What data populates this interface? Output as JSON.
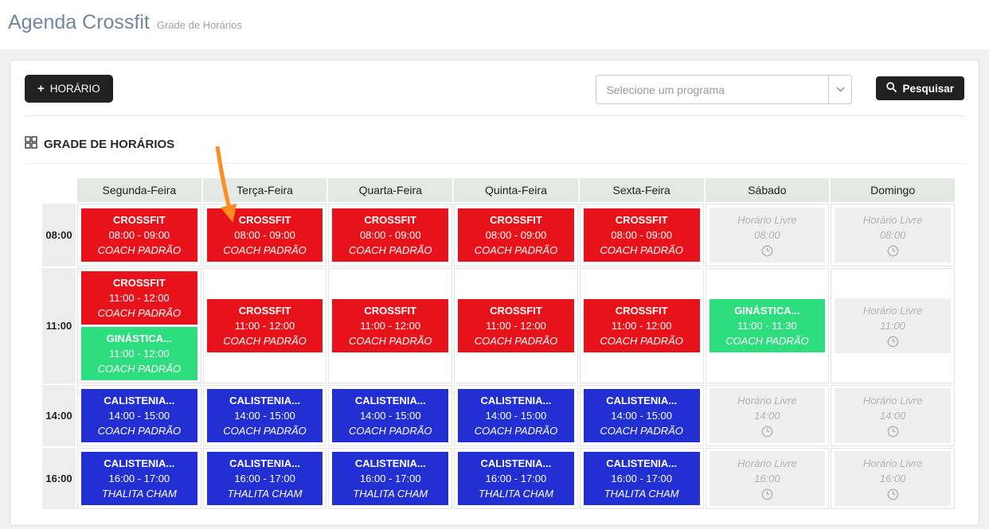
{
  "page": {
    "title": "Agenda Crossfit",
    "subtitle": "Grade de Horários"
  },
  "toolbar": {
    "add_button_label": "HORÁRIO",
    "add_button_plus": "+",
    "select_placeholder": "Selecione um programa",
    "search_button_label": "Pesquisar"
  },
  "section": {
    "title": "GRADE DE HORÁRIOS"
  },
  "colors": {
    "red": "#e8121a",
    "green": "#2edd7e",
    "blue": "#222fd3",
    "free_bg": "#efefef",
    "free_text": "#b3b3b3",
    "arrow_orange": "#ff8c1e",
    "button_dark": "#212121",
    "title_blue_gray": "#73879c"
  },
  "schedule": {
    "days": [
      "Segunda-Feira",
      "Terça-Feira",
      "Quarta-Feira",
      "Quinta-Feira",
      "Sexta-Feira",
      "Sábado",
      "Domingo"
    ],
    "rows": [
      {
        "time": "08:00",
        "cells": [
          {
            "blocks": [
              {
                "kind": "class",
                "color": "red",
                "title": "CROSSFIT",
                "time": "08:00 - 09:00",
                "coach": "COACH PADRÃO"
              }
            ]
          },
          {
            "blocks": [
              {
                "kind": "class",
                "color": "red",
                "title": "CROSSFIT",
                "time": "08:00 - 09:00",
                "coach": "COACH PADRÃO"
              }
            ]
          },
          {
            "blocks": [
              {
                "kind": "class",
                "color": "red",
                "title": "CROSSFIT",
                "time": "08:00 - 09:00",
                "coach": "COACH PADRÃO"
              }
            ]
          },
          {
            "blocks": [
              {
                "kind": "class",
                "color": "red",
                "title": "CROSSFIT",
                "time": "08:00 - 09:00",
                "coach": "COACH PADRÃO"
              }
            ]
          },
          {
            "blocks": [
              {
                "kind": "class",
                "color": "red",
                "title": "CROSSFIT",
                "time": "08:00 - 09:00",
                "coach": "COACH PADRÃO"
              }
            ]
          },
          {
            "blocks": [
              {
                "kind": "free",
                "title": "Horário Livre",
                "time": "08:00"
              }
            ]
          },
          {
            "blocks": [
              {
                "kind": "free",
                "title": "Horário Livre",
                "time": "08:00"
              }
            ]
          }
        ]
      },
      {
        "time": "11:00",
        "cells": [
          {
            "blocks": [
              {
                "kind": "class",
                "color": "red",
                "title": "CROSSFIT",
                "time": "11:00 - 12:00",
                "coach": "COACH PADRÃO"
              },
              {
                "kind": "class",
                "color": "green",
                "title": "GINÁSTICA...",
                "time": "11:00 - 12:00",
                "coach": "COACH PADRÃO"
              }
            ]
          },
          {
            "blocks": [
              {
                "kind": "class",
                "color": "red",
                "title": "CROSSFIT",
                "time": "11:00 - 12:00",
                "coach": "COACH PADRÃO"
              }
            ]
          },
          {
            "blocks": [
              {
                "kind": "class",
                "color": "red",
                "title": "CROSSFIT",
                "time": "11:00 - 12:00",
                "coach": "COACH PADRÃO"
              }
            ]
          },
          {
            "blocks": [
              {
                "kind": "class",
                "color": "red",
                "title": "CROSSFIT",
                "time": "11:00 - 12:00",
                "coach": "COACH PADRÃO"
              }
            ]
          },
          {
            "blocks": [
              {
                "kind": "class",
                "color": "red",
                "title": "CROSSFIT",
                "time": "11:00 - 12:00",
                "coach": "COACH PADRÃO"
              }
            ]
          },
          {
            "blocks": [
              {
                "kind": "class",
                "color": "green",
                "title": "GINÁSTICA...",
                "time": "11:00 - 11:30",
                "coach": "COACH PADRÃO"
              }
            ]
          },
          {
            "blocks": [
              {
                "kind": "free",
                "title": "Horário Livre",
                "time": "11:00"
              }
            ]
          }
        ]
      },
      {
        "time": "14:00",
        "cells": [
          {
            "blocks": [
              {
                "kind": "class",
                "color": "blue",
                "title": "CALISTENIA...",
                "time": "14:00 - 15:00",
                "coach": "COACH PADRÃO"
              }
            ]
          },
          {
            "blocks": [
              {
                "kind": "class",
                "color": "blue",
                "title": "CALISTENIA...",
                "time": "14:00 - 15:00",
                "coach": "COACH PADRÃO"
              }
            ]
          },
          {
            "blocks": [
              {
                "kind": "class",
                "color": "blue",
                "title": "CALISTENIA...",
                "time": "14:00 - 15:00",
                "coach": "COACH PADRÃO"
              }
            ]
          },
          {
            "blocks": [
              {
                "kind": "class",
                "color": "blue",
                "title": "CALISTENIA...",
                "time": "14:00 - 15:00",
                "coach": "COACH PADRÃO"
              }
            ]
          },
          {
            "blocks": [
              {
                "kind": "class",
                "color": "blue",
                "title": "CALISTENIA...",
                "time": "14:00 - 15:00",
                "coach": "COACH PADRÃO"
              }
            ]
          },
          {
            "blocks": [
              {
                "kind": "free",
                "title": "Horário Livre",
                "time": "14:00"
              }
            ]
          },
          {
            "blocks": [
              {
                "kind": "free",
                "title": "Horário Livre",
                "time": "14:00"
              }
            ]
          }
        ]
      },
      {
        "time": "16:00",
        "cells": [
          {
            "blocks": [
              {
                "kind": "class",
                "color": "blue",
                "title": "CALISTENIA...",
                "time": "16:00 - 17:00",
                "coach": "THALITA CHAM"
              }
            ]
          },
          {
            "blocks": [
              {
                "kind": "class",
                "color": "blue",
                "title": "CALISTENIA...",
                "time": "16:00 - 17:00",
                "coach": "THALITA CHAM"
              }
            ]
          },
          {
            "blocks": [
              {
                "kind": "class",
                "color": "blue",
                "title": "CALISTENIA...",
                "time": "16:00 - 17:00",
                "coach": "THALITA CHAM"
              }
            ]
          },
          {
            "blocks": [
              {
                "kind": "class",
                "color": "blue",
                "title": "CALISTENIA...",
                "time": "16:00 - 17:00",
                "coach": "THALITA CHAM"
              }
            ]
          },
          {
            "blocks": [
              {
                "kind": "class",
                "color": "blue",
                "title": "CALISTENIA...",
                "time": "16:00 - 17:00",
                "coach": "THALITA CHAM"
              }
            ]
          },
          {
            "blocks": [
              {
                "kind": "free",
                "title": "Horário Livre",
                "time": "16:00"
              }
            ]
          },
          {
            "blocks": [
              {
                "kind": "free",
                "title": "Horário Livre",
                "time": "16:00"
              }
            ]
          }
        ]
      }
    ]
  }
}
